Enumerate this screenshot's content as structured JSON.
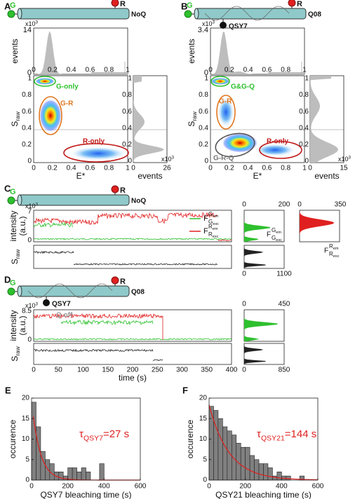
{
  "figure": {
    "A": {
      "label": "A",
      "construct": {
        "donor": "G",
        "acceptor": "R",
        "name": "NoQ"
      },
      "top_hist": {
        "ylabel": "events",
        "yticks": [
          "0",
          "14"
        ],
        "exp_base": "x10",
        "exp": "3",
        "xticks": [
          "0",
          "0.2",
          "0.4",
          "0.6",
          "0.8",
          "1"
        ]
      },
      "main": {
        "ylabel": "S",
        "ylabel_sub": "raw",
        "yticks": [
          "0",
          "0.2",
          "0.4",
          "0.6",
          "0.8",
          "1"
        ],
        "xticks": [
          "0",
          "0.2",
          "0.4",
          "0.6",
          "0.8",
          "1"
        ],
        "xlabel": "E*",
        "populations": [
          "G-only",
          "G-R",
          "R-only"
        ]
      },
      "side_hist": {
        "yticks": [
          "0",
          "0.2",
          "0.4",
          "0.6",
          "0.8",
          "1"
        ],
        "xticks": [
          "0",
          "26"
        ],
        "exp_base": "x10",
        "exp": "3",
        "xlabel": "events"
      }
    },
    "B": {
      "label": "B",
      "construct": {
        "donor": "G",
        "acceptor": "R",
        "name": "Q08",
        "quencher": "QSY7"
      },
      "top_hist": {
        "ylabel": "events",
        "yticks": [
          "0",
          "3.4"
        ],
        "exp_base": "x10",
        "exp": "3",
        "xticks": [
          "0",
          "0.2",
          "0.4",
          "0.6",
          "0.8",
          "1"
        ]
      },
      "main": {
        "ylabel": "S",
        "ylabel_sub": "raw",
        "yticks": [
          "0",
          "0.2",
          "0.4",
          "0.6",
          "0.8",
          "1"
        ],
        "xticks": [
          "0",
          "0.2",
          "0.4",
          "0.6",
          "0.8",
          "1"
        ],
        "xlabel": "E*",
        "populations": [
          "G&G-Q",
          "G-R",
          "R-only",
          "G-R-Q"
        ]
      },
      "side_hist": {
        "yticks": [
          "0",
          "0.2",
          "0.4",
          "0.6",
          "0.8",
          "1"
        ],
        "xticks": [
          "0",
          "15"
        ],
        "exp_base": "x10",
        "exp": "3",
        "xlabel": "events"
      }
    },
    "C": {
      "label": "C",
      "construct": {
        "donor": "G",
        "acceptor": "R",
        "name": "NoQ"
      },
      "trace": {
        "ylabel": "intensity",
        "ylabel2": "(a.u.)",
        "yticks": [
          "0",
          "7"
        ],
        "exp_base": "x10",
        "exp": "3",
        "legend": [
          {
            "main": "F",
            "sup": "G",
            "sup_sub": "em",
            "sub": "G",
            "sub_sub": "exc"
          },
          {
            "main": "F",
            "sup": "R",
            "sup_sub": "em",
            "sub": "R",
            "sub_sub": "exc"
          }
        ]
      },
      "s_trace": {
        "ylabel": "S",
        "ylabel_sub": "raw"
      },
      "green_hist": {
        "xticks": [
          "0",
          "200"
        ]
      },
      "red_hist": {
        "xticks": [
          "0",
          "350"
        ]
      },
      "s_hist": {
        "xticks": [
          "0",
          "1100"
        ]
      }
    },
    "D": {
      "label": "D",
      "construct": {
        "donor": "G",
        "acceptor": "R",
        "name": "Q08",
        "quencher": "QSY7"
      },
      "trace": {
        "ylabel": "intensity",
        "ylabel2": "(a.u.)",
        "yticks": [
          "0",
          "8.5"
        ],
        "exp_base": "x10",
        "exp": "3",
        "annotation": "Q off"
      },
      "s_trace": {
        "ylabel": "S",
        "ylabel_sub": "raw",
        "xticks": [
          "0",
          "50",
          "100",
          "150",
          "200",
          "250",
          "300",
          "350",
          "400"
        ],
        "xlabel": "time (s)"
      },
      "green_hist": {
        "xticks": [
          "0",
          "450"
        ]
      },
      "s_hist": {
        "xticks": [
          "0",
          "850"
        ]
      }
    }
  },
  "chart_data": [
    {
      "type": "histogram",
      "label": "E",
      "bins": [
        0,
        25,
        50,
        75,
        100,
        125,
        150,
        175,
        200,
        225,
        250,
        275,
        300,
        325,
        350,
        375,
        400
      ],
      "counts": [
        19,
        13,
        7,
        5,
        4,
        2,
        2,
        1,
        3,
        3,
        2,
        3,
        2,
        0,
        0,
        4
      ],
      "color": "#808080",
      "xlim": [
        0,
        600
      ],
      "ylim": [
        0,
        20
      ],
      "xticks": [
        0,
        200,
        400,
        600
      ],
      "yticks": [
        0,
        5,
        10,
        15,
        20
      ],
      "xlabel": "QSY7 bleaching time (s)",
      "ylabel": "occurence",
      "annotation": {
        "symbol": "τ",
        "sub": "QSY7",
        "text": "=27 s"
      },
      "fit_color": "#e02020"
    },
    {
      "type": "histogram",
      "label": "F",
      "bins": [
        0,
        25,
        50,
        75,
        100,
        125,
        150,
        175,
        200,
        225,
        250,
        275,
        300,
        325,
        350,
        375,
        400,
        425,
        450,
        475,
        500,
        525
      ],
      "counts": [
        18,
        17,
        15,
        13,
        12,
        11,
        9,
        8,
        8,
        6,
        5,
        4,
        4,
        3,
        1,
        2,
        1,
        1,
        0,
        0,
        1
      ],
      "color": "#808080",
      "xlim": [
        0,
        600
      ],
      "ylim": [
        0,
        20
      ],
      "xticks": [
        0,
        200,
        400,
        600
      ],
      "yticks": [
        0,
        5,
        10,
        15,
        20
      ],
      "xlabel": "QSY21 bleaching time (s)",
      "ylabel": "occurence",
      "annotation": {
        "symbol": "τ",
        "sub": "QSY21",
        "text": "=144 s"
      },
      "fit_color": "#e02020"
    }
  ]
}
